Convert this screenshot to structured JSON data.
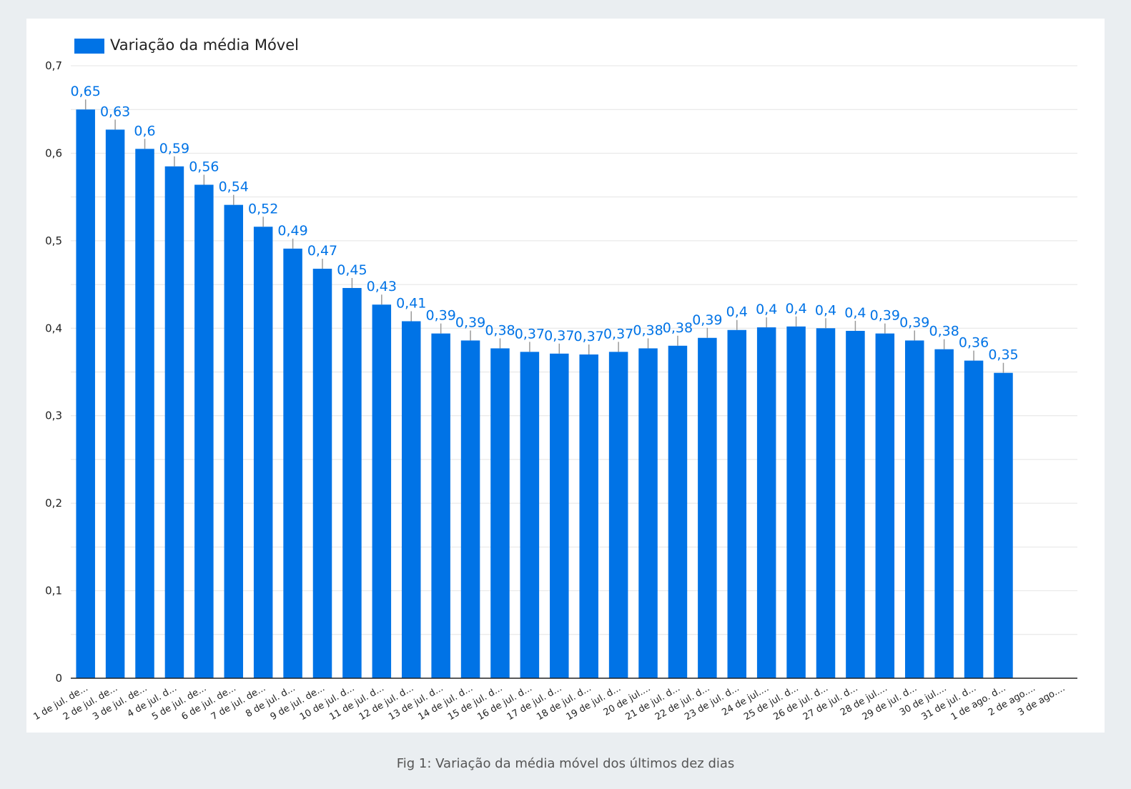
{
  "chart_data": {
    "type": "bar",
    "legend": "Variação da média Móvel",
    "legend_position": "top-left",
    "color": "#0073e6",
    "label_color": "#0073e6",
    "grid": true,
    "ylim": [
      0,
      0.7
    ],
    "y_ticks": [
      "0",
      "0,1",
      "0,2",
      "0,3",
      "0,4",
      "0,5",
      "0,6",
      "0,7"
    ],
    "categories": [
      "1 de jul. de...",
      "2 de jul. de...",
      "3 de jul. de...",
      "4 de jul. d...",
      "5 de jul. de...",
      "6 de jul. de...",
      "7 de jul. de...",
      "8 de jul. d...",
      "9 de jul. de...",
      "10 de jul. d...",
      "11 de jul. d...",
      "12 de jul. d...",
      "13 de jul. d...",
      "14 de jul. d...",
      "15 de jul. d...",
      "16 de jul. d...",
      "17 de jul. d...",
      "18 de jul. d...",
      "19 de jul. d...",
      "20 de jul....",
      "21 de jul. d...",
      "22 de jul. d...",
      "23 de jul. d...",
      "24 de jul....",
      "25 de jul. d...",
      "26 de jul. d...",
      "27 de jul. d...",
      "28 de jul....",
      "29 de jul. d...",
      "30 de jul....",
      "31 de jul. d...",
      "1 de ago. d...",
      "2 de ago....",
      "3 de ago...."
    ],
    "values": [
      0.65,
      0.627,
      0.605,
      0.585,
      0.564,
      0.541,
      0.516,
      0.491,
      0.468,
      0.446,
      0.427,
      0.408,
      0.394,
      0.386,
      0.377,
      0.373,
      0.371,
      0.37,
      0.373,
      0.377,
      0.38,
      0.389,
      0.398,
      0.401,
      0.402,
      0.4,
      0.397,
      0.394,
      0.386,
      0.376,
      0.363,
      0.349,
      null,
      null
    ],
    "data_labels": [
      "0,65",
      "0,63",
      "0,6",
      "0,59",
      "0,56",
      "0,54",
      "0,52",
      "0,49",
      "0,47",
      "0,45",
      "0,43",
      "0,41",
      "0,39",
      "0,39",
      "0,38",
      "0,37",
      "0,37",
      "0,37",
      "0,37",
      "0,38",
      "0,38",
      "0,39",
      "0,4",
      "0,4",
      "0,4",
      "0,4",
      "0,4",
      "0,39",
      "0,39",
      "0,38",
      "0,36",
      "0,35",
      "",
      ""
    ]
  },
  "caption": "Fig 1: Variação da média móvel dos últimos dez dias"
}
